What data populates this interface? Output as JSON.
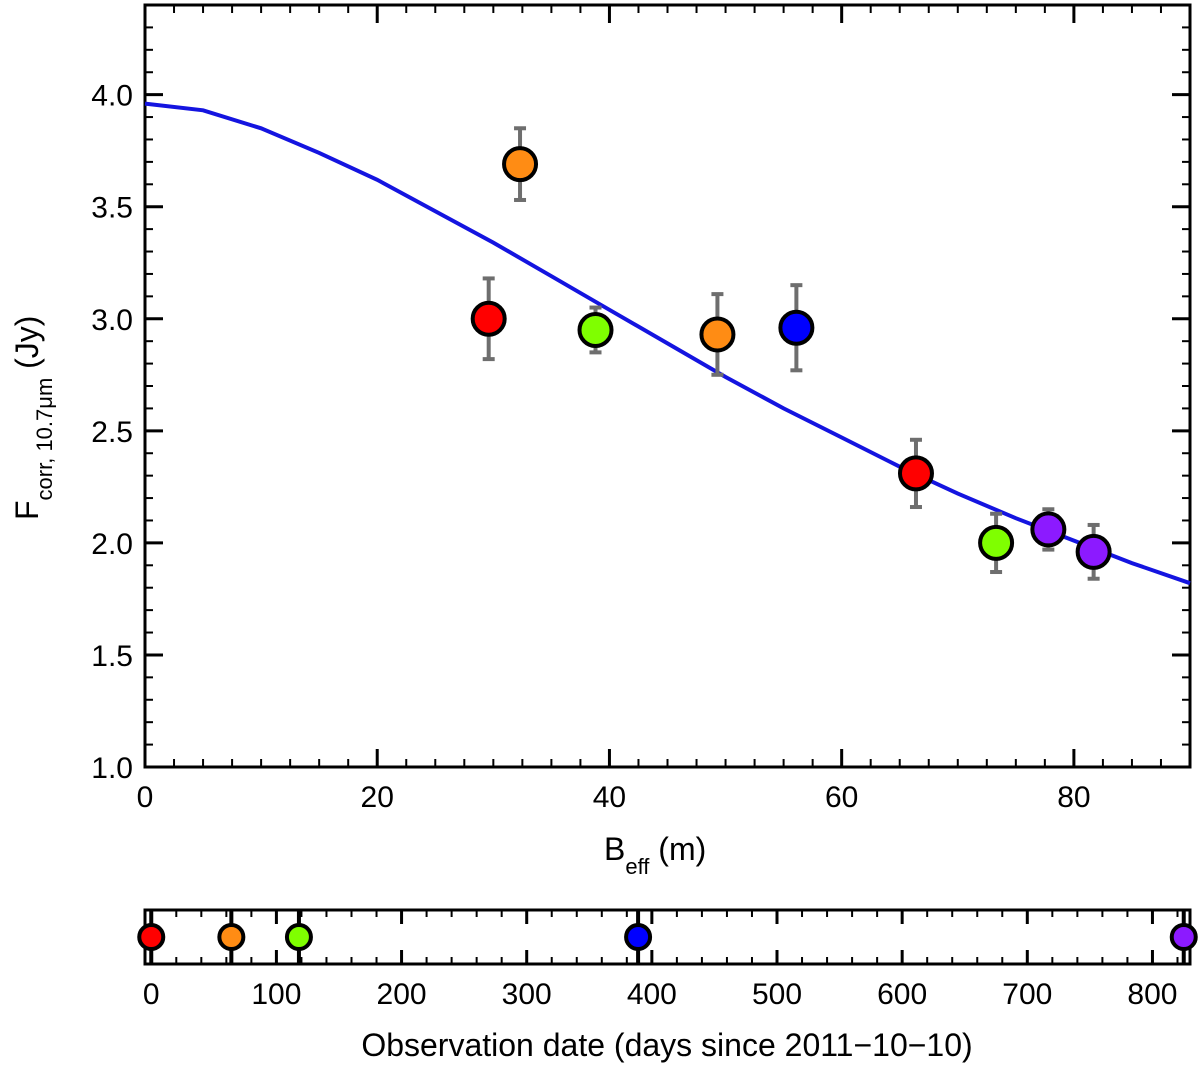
{
  "chart_data": [
    {
      "type": "scatter",
      "xlabel": {
        "main": "B",
        "sub": "eff",
        "unit": " (m)"
      },
      "ylabel": {
        "main": "F",
        "sub": "corr, 10.7μm",
        "unit": " (Jy)"
      },
      "xlim": [
        0,
        90
      ],
      "ylim": [
        1.0,
        4.4
      ],
      "x_ticks": [
        0,
        20,
        40,
        60,
        80
      ],
      "x_tick_labels": [
        "0",
        "20",
        "40",
        "60",
        "80"
      ],
      "y_ticks": [
        1.0,
        1.5,
        2.0,
        2.5,
        3.0,
        3.5,
        4.0
      ],
      "y_tick_labels": [
        "1.0",
        "1.5",
        "2.0",
        "2.5",
        "3.0",
        "3.5",
        "4.0"
      ],
      "fit_curve": {
        "color": "#1414e0",
        "x": [
          0,
          5,
          10,
          15,
          20,
          25,
          30,
          35,
          40,
          45,
          50,
          55,
          60,
          65,
          70,
          75,
          80,
          85,
          90
        ],
        "y": [
          3.96,
          3.93,
          3.85,
          3.74,
          3.62,
          3.48,
          3.34,
          3.19,
          3.04,
          2.89,
          2.74,
          2.6,
          2.47,
          2.34,
          2.22,
          2.11,
          2.01,
          1.91,
          1.82
        ]
      },
      "points": [
        {
          "x": 29.6,
          "y": 3.0,
          "err": 0.18,
          "color": "#ff0000"
        },
        {
          "x": 32.3,
          "y": 3.69,
          "err": 0.16,
          "color": "#ff8c14"
        },
        {
          "x": 38.8,
          "y": 2.95,
          "err": 0.1,
          "color": "#7fff00"
        },
        {
          "x": 49.3,
          "y": 2.93,
          "err": 0.18,
          "color": "#ff8c14"
        },
        {
          "x": 56.1,
          "y": 2.96,
          "err": 0.19,
          "color": "#0000ff"
        },
        {
          "x": 66.4,
          "y": 2.31,
          "err": 0.15,
          "color": "#ff0000"
        },
        {
          "x": 73.3,
          "y": 2.0,
          "err": 0.13,
          "color": "#7fff00"
        },
        {
          "x": 77.8,
          "y": 2.06,
          "err": 0.09,
          "color": "#8c1aff"
        },
        {
          "x": 81.7,
          "y": 1.96,
          "err": 0.12,
          "color": "#8c1aff"
        }
      ]
    },
    {
      "type": "scatter",
      "xlabel": "Observation date (days since 2011−10−10)",
      "xlim": [
        -5,
        830
      ],
      "x_ticks": [
        0,
        100,
        200,
        300,
        400,
        500,
        600,
        700,
        800
      ],
      "x_tick_labels": [
        "0",
        "100",
        "200",
        "300",
        "400",
        "500",
        "600",
        "700",
        "800"
      ],
      "points": [
        {
          "x": 0,
          "color": "#ff0000"
        },
        {
          "x": 64,
          "color": "#ff8c14"
        },
        {
          "x": 118,
          "color": "#7fff00"
        },
        {
          "x": 389,
          "color": "#0000ff"
        },
        {
          "x": 825,
          "color": "#8c1aff"
        }
      ]
    }
  ]
}
